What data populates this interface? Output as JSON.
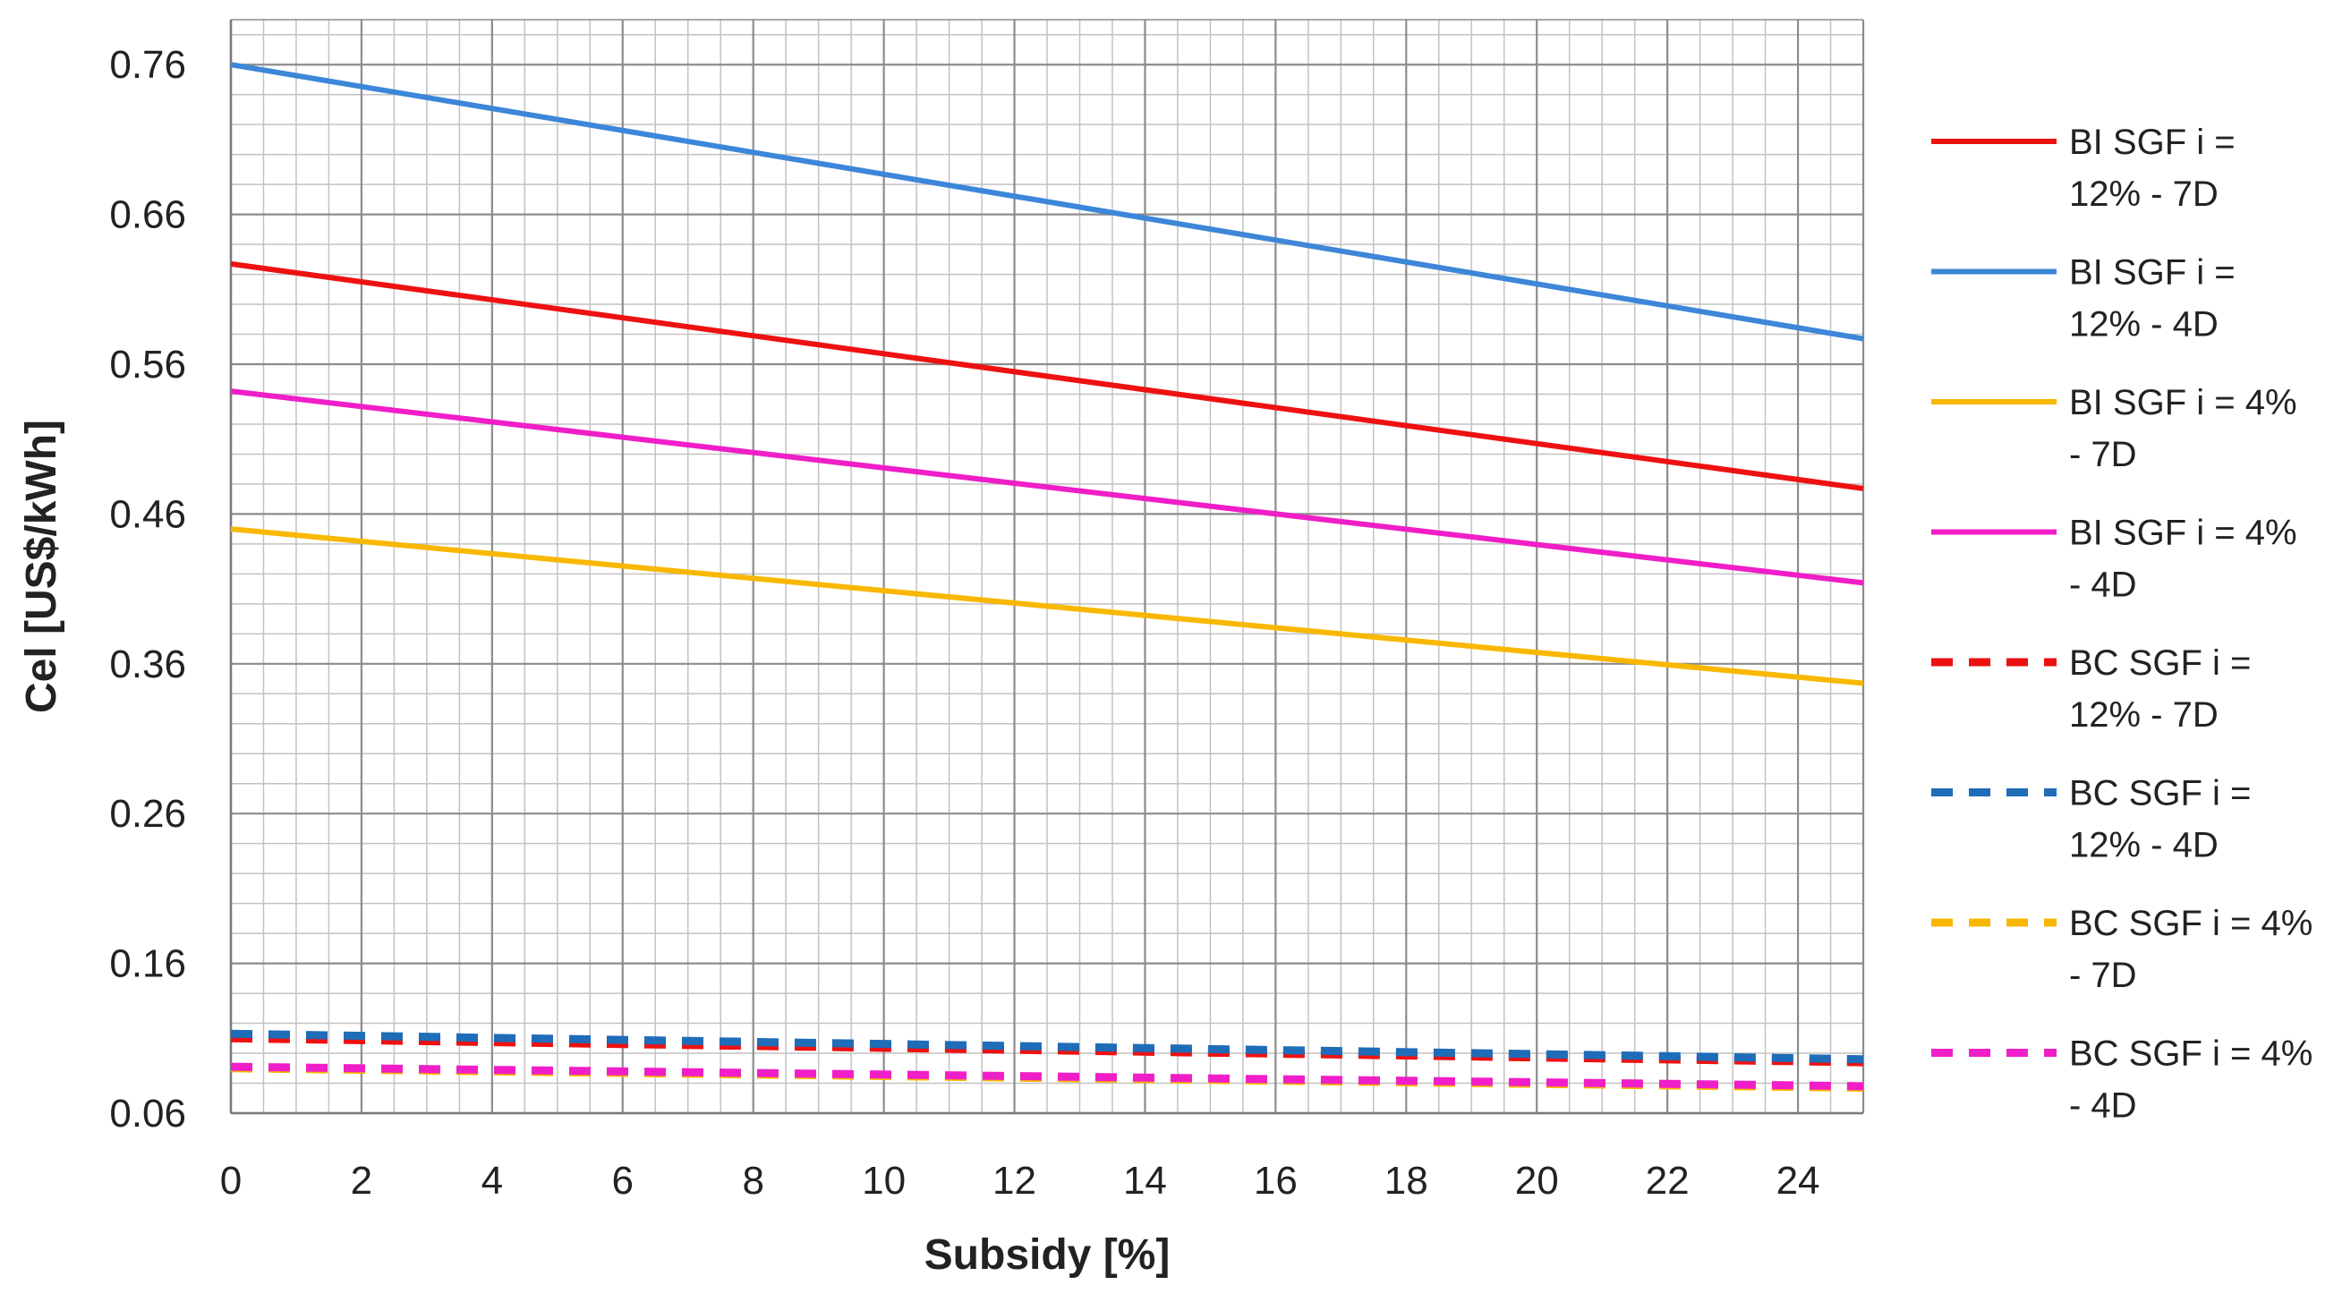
{
  "chart_data": {
    "type": "line",
    "title": "",
    "xlabel": "Subsidy [%]",
    "ylabel": "Cel [US$/kWh]",
    "xlim": [
      0,
      25
    ],
    "ylim": [
      0.06,
      0.79
    ],
    "xticks": [
      0,
      2,
      4,
      6,
      8,
      10,
      12,
      14,
      16,
      18,
      20,
      22,
      24
    ],
    "xtick_labels": [
      "0",
      "2",
      "4",
      "6",
      "8",
      "10",
      "12",
      "14",
      "16",
      "18",
      "20",
      "22",
      "24"
    ],
    "yticks": [
      0.06,
      0.16,
      0.26,
      0.36,
      0.46,
      0.56,
      0.66,
      0.76
    ],
    "ytick_labels": [
      "0.06",
      "0.16",
      "0.26",
      "0.36",
      "0.46",
      "0.56",
      "0.66",
      "0.76"
    ],
    "grid": true,
    "legend_position": "right",
    "x": [
      0,
      25
    ],
    "series": [
      {
        "name": "BI SGF i = 12% - 7D",
        "legend_lines": [
          "BI SGF i =",
          "12% - 7D"
        ],
        "color": "#ee1111",
        "dashed": false,
        "values": [
          0.627,
          0.477
        ]
      },
      {
        "name": "BI SGF i = 12% - 4D",
        "legend_lines": [
          "BI SGF i =",
          "12% - 4D"
        ],
        "color": "#3d86d8",
        "dashed": false,
        "values": [
          0.76,
          0.577
        ]
      },
      {
        "name": "BI SGF i = 4% - 7D",
        "legend_lines": [
          "BI SGF i = 4%",
          "- 7D"
        ],
        "color": "#f8b800",
        "dashed": false,
        "values": [
          0.45,
          0.347
        ]
      },
      {
        "name": "BI SGF i = 4% - 4D",
        "legend_lines": [
          "BI SGF i = 4%",
          "- 4D"
        ],
        "color": "#f01ec8",
        "dashed": false,
        "values": [
          0.542,
          0.414
        ]
      },
      {
        "name": "BC SGF i = 12% - 7D",
        "legend_lines": [
          "BC SGF i =",
          "12% - 7D"
        ],
        "color": "#ee1111",
        "dashed": true,
        "values": [
          0.11,
          0.094
        ]
      },
      {
        "name": "BC SGF i = 12% - 4D",
        "legend_lines": [
          "BC SGF i =",
          "12% - 4D"
        ],
        "color": "#1f6cb8",
        "dashed": true,
        "values": [
          0.113,
          0.096
        ]
      },
      {
        "name": "BC SGF i = 4% - 7D",
        "legend_lines": [
          "BC SGF i = 4%",
          "- 7D"
        ],
        "color": "#f8b800",
        "dashed": true,
        "values": [
          0.09,
          0.077
        ]
      },
      {
        "name": "BC SGF i = 4% - 4D",
        "legend_lines": [
          "BC SGF i = 4%",
          "- 4D"
        ],
        "color": "#f01ec8",
        "dashed": true,
        "values": [
          0.091,
          0.078
        ]
      }
    ]
  }
}
